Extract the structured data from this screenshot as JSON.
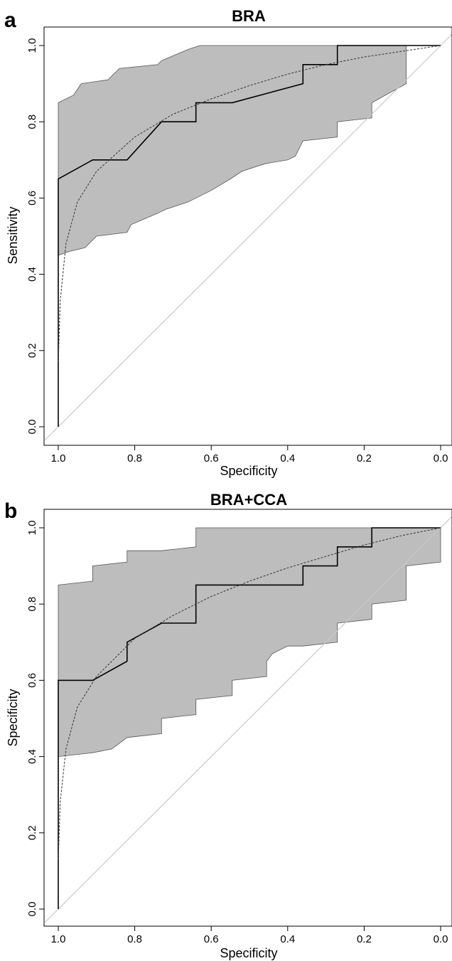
{
  "chart_data": [
    {
      "panel": "a",
      "type": "line",
      "title": "BRA",
      "xlabel": "Specificity",
      "ylabel": "Sensitivity",
      "x_reversed": true,
      "xlim": [
        1.0,
        0.0
      ],
      "ylim": [
        0.0,
        1.0
      ],
      "xticks": [
        "1.0",
        "0.8",
        "0.6",
        "0.4",
        "0.2",
        "0.0"
      ],
      "yticks": [
        "0.0",
        "0.2",
        "0.4",
        "0.6",
        "0.8",
        "1.0"
      ],
      "grid": false,
      "colors": {
        "ci_fill": "#bdbdbd",
        "roc": "#000000",
        "smooth": "#333333",
        "diagonal": "#c8c8c8"
      },
      "confidence_band": {
        "upper": [
          [
            1.0,
            0.85
          ],
          [
            0.96,
            0.87
          ],
          [
            0.94,
            0.9
          ],
          [
            0.87,
            0.91
          ],
          [
            0.84,
            0.94
          ],
          [
            0.74,
            0.95
          ],
          [
            0.73,
            0.96
          ],
          [
            0.66,
            0.99
          ],
          [
            0.63,
            1.0
          ],
          [
            0.0,
            1.0
          ]
        ],
        "lower": [
          [
            0.09,
            1.0
          ],
          [
            0.09,
            0.9
          ],
          [
            0.18,
            0.85
          ],
          [
            0.18,
            0.81
          ],
          [
            0.27,
            0.8
          ],
          [
            0.27,
            0.76
          ],
          [
            0.36,
            0.75
          ],
          [
            0.38,
            0.71
          ],
          [
            0.4,
            0.7
          ],
          [
            0.46,
            0.69
          ],
          [
            0.52,
            0.67
          ],
          [
            0.55,
            0.65
          ],
          [
            0.6,
            0.62
          ],
          [
            0.66,
            0.59
          ],
          [
            0.72,
            0.57
          ],
          [
            0.74,
            0.56
          ],
          [
            0.81,
            0.53
          ],
          [
            0.82,
            0.51
          ],
          [
            0.9,
            0.5
          ],
          [
            0.93,
            0.47
          ],
          [
            0.97,
            0.46
          ],
          [
            1.0,
            0.45
          ]
        ]
      },
      "series": [
        {
          "values": [
            [
              1.0,
              0.0
            ],
            [
              1.0,
              0.65
            ],
            [
              0.91,
              0.7
            ],
            [
              0.82,
              0.7
            ],
            [
              0.73,
              0.8
            ],
            [
              0.64,
              0.8
            ],
            [
              0.64,
              0.85
            ],
            [
              0.545,
              0.85
            ],
            [
              0.36,
              0.9
            ],
            [
              0.36,
              0.95
            ],
            [
              0.27,
              0.95
            ],
            [
              0.27,
              1.0
            ],
            [
              0.0,
              1.0
            ]
          ]
        },
        {
          "values": [
            [
              1.0,
              0.17
            ],
            [
              0.995,
              0.33
            ],
            [
              0.98,
              0.48
            ],
            [
              0.95,
              0.59
            ],
            [
              0.9,
              0.67
            ],
            [
              0.8,
              0.76
            ],
            [
              0.7,
              0.82
            ],
            [
              0.6,
              0.86
            ],
            [
              0.5,
              0.895
            ],
            [
              0.4,
              0.925
            ],
            [
              0.3,
              0.95
            ],
            [
              0.2,
              0.97
            ],
            [
              0.1,
              0.985
            ],
            [
              0.0,
              1.0
            ]
          ]
        }
      ]
    },
    {
      "panel": "b",
      "type": "line",
      "title": "BRA+CCA",
      "xlabel": "Specificity",
      "ylabel": "Specificity",
      "x_reversed": true,
      "xlim": [
        1.0,
        0.0
      ],
      "ylim": [
        0.0,
        1.0
      ],
      "xticks": [
        "1.0",
        "0.8",
        "0.6",
        "0.4",
        "0.2",
        "0.0"
      ],
      "yticks": [
        "0.0",
        "0.2",
        "0.4",
        "0.6",
        "0.8",
        "1.0"
      ],
      "grid": false,
      "colors": {
        "ci_fill": "#bdbdbd",
        "roc": "#000000",
        "smooth": "#333333",
        "diagonal": "#c8c8c8"
      },
      "confidence_band": {
        "upper": [
          [
            1.0,
            0.85
          ],
          [
            0.91,
            0.86
          ],
          [
            0.91,
            0.9
          ],
          [
            0.82,
            0.91
          ],
          [
            0.82,
            0.94
          ],
          [
            0.73,
            0.94
          ],
          [
            0.64,
            0.95
          ],
          [
            0.64,
            1.0
          ],
          [
            0.0,
            1.0
          ]
        ],
        "lower": [
          [
            0.0,
            1.0
          ],
          [
            0.0,
            0.91
          ],
          [
            0.09,
            0.9
          ],
          [
            0.09,
            0.81
          ],
          [
            0.18,
            0.8
          ],
          [
            0.18,
            0.76
          ],
          [
            0.27,
            0.75
          ],
          [
            0.27,
            0.7
          ],
          [
            0.36,
            0.69
          ],
          [
            0.4,
            0.69
          ],
          [
            0.44,
            0.67
          ],
          [
            0.455,
            0.65
          ],
          [
            0.455,
            0.61
          ],
          [
            0.545,
            0.6
          ],
          [
            0.545,
            0.56
          ],
          [
            0.64,
            0.55
          ],
          [
            0.64,
            0.51
          ],
          [
            0.73,
            0.5
          ],
          [
            0.73,
            0.46
          ],
          [
            0.82,
            0.45
          ],
          [
            0.86,
            0.42
          ],
          [
            0.91,
            0.41
          ],
          [
            1.0,
            0.4
          ]
        ]
      },
      "series": [
        {
          "values": [
            [
              1.0,
              0.0
            ],
            [
              1.0,
              0.6
            ],
            [
              0.91,
              0.6
            ],
            [
              0.82,
              0.65
            ],
            [
              0.82,
              0.7
            ],
            [
              0.73,
              0.75
            ],
            [
              0.64,
              0.75
            ],
            [
              0.64,
              0.85
            ],
            [
              0.36,
              0.85
            ],
            [
              0.36,
              0.9
            ],
            [
              0.27,
              0.9
            ],
            [
              0.27,
              0.95
            ],
            [
              0.18,
              0.95
            ],
            [
              0.18,
              1.0
            ],
            [
              0.0,
              1.0
            ]
          ]
        },
        {
          "values": [
            [
              1.0,
              0.13
            ],
            [
              0.995,
              0.28
            ],
            [
              0.98,
              0.42
            ],
            [
              0.95,
              0.53
            ],
            [
              0.9,
              0.61
            ],
            [
              0.8,
              0.71
            ],
            [
              0.7,
              0.77
            ],
            [
              0.6,
              0.82
            ],
            [
              0.5,
              0.86
            ],
            [
              0.4,
              0.895
            ],
            [
              0.3,
              0.925
            ],
            [
              0.2,
              0.955
            ],
            [
              0.1,
              0.98
            ],
            [
              0.0,
              1.0
            ]
          ]
        }
      ]
    }
  ]
}
